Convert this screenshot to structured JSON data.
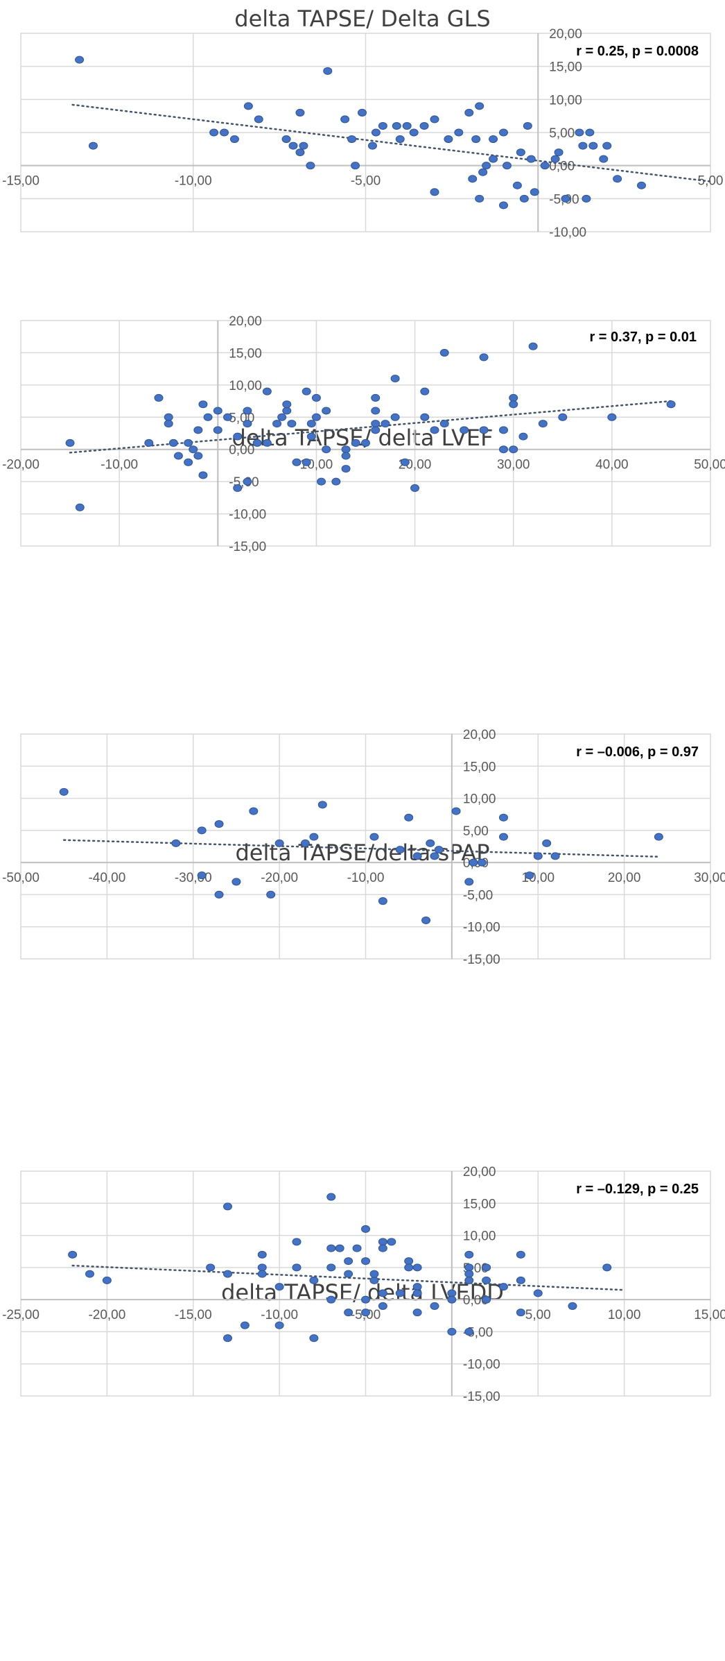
{
  "chart_data": [
    {
      "type": "scatter",
      "title": "delta TAPSE/ Delta GLS",
      "annotation": "r = 0.25, p = 0.0008",
      "xlim": [
        -15,
        5
      ],
      "ylim": [
        -10,
        20
      ],
      "x_ticks": [
        -15,
        -10,
        -5,
        0,
        5
      ],
      "y_ticks": [
        -10,
        -5,
        0,
        5,
        10,
        15,
        20
      ],
      "tick_labels_x": [
        "-15,00",
        "-10,00",
        "-5,00",
        "0,00",
        "5,00"
      ],
      "tick_labels_y": [
        "-10,00",
        "-5,00",
        "0,00",
        "5,00",
        "10,00",
        "15,00",
        "20,00"
      ],
      "grid": true,
      "legend": "none",
      "trendline": [
        [
          -13.5,
          9.2
        ],
        [
          5,
          -2.4
        ]
      ],
      "points": [
        [
          -13.3,
          16
        ],
        [
          -12.9,
          3
        ],
        [
          -9.4,
          5
        ],
        [
          -9.1,
          5
        ],
        [
          -8.4,
          9
        ],
        [
          -8.1,
          7
        ],
        [
          -8.8,
          4
        ],
        [
          -7.3,
          4
        ],
        [
          -7.1,
          3
        ],
        [
          -6.9,
          2
        ],
        [
          -6.8,
          3
        ],
        [
          -6.9,
          8
        ],
        [
          -6.6,
          0
        ],
        [
          -6.1,
          14.3
        ],
        [
          -5.6,
          7
        ],
        [
          -5.4,
          4
        ],
        [
          -5.3,
          0
        ],
        [
          -5.1,
          8
        ],
        [
          -4.8,
          3
        ],
        [
          -4.7,
          5
        ],
        [
          -4.5,
          6
        ],
        [
          -4.1,
          6
        ],
        [
          -4.0,
          4
        ],
        [
          -3.8,
          6
        ],
        [
          -3.6,
          5
        ],
        [
          -3.3,
          6
        ],
        [
          -3.0,
          7
        ],
        [
          -3.0,
          -4
        ],
        [
          -2.6,
          4
        ],
        [
          -2.3,
          5
        ],
        [
          -2.0,
          8
        ],
        [
          -1.7,
          9
        ],
        [
          -1.8,
          4
        ],
        [
          -1.5,
          0
        ],
        [
          -1.6,
          -1
        ],
        [
          -1.3,
          1
        ],
        [
          -1.0,
          5
        ],
        [
          -0.9,
          0
        ],
        [
          -1.9,
          -2
        ],
        [
          -1.3,
          4
        ],
        [
          -0.5,
          2
        ],
        [
          -0.2,
          1
        ],
        [
          0.2,
          0
        ],
        [
          0.5,
          1
        ],
        [
          0.6,
          2
        ],
        [
          -0.3,
          6
        ],
        [
          -1.7,
          -5
        ],
        [
          -1.0,
          -6
        ],
        [
          -0.6,
          -3
        ],
        [
          -0.4,
          -5
        ],
        [
          -0.1,
          -4
        ],
        [
          1.2,
          5
        ],
        [
          1.5,
          5
        ],
        [
          1.3,
          3
        ],
        [
          1.6,
          3
        ],
        [
          1.9,
          1
        ],
        [
          2.0,
          3
        ],
        [
          2.3,
          -2
        ],
        [
          3.0,
          -3
        ],
        [
          1.4,
          -5
        ],
        [
          0.8,
          -5
        ]
      ]
    },
    {
      "type": "scatter",
      "title": "delta TAPSE/ delta LVEF",
      "annotation": "r = 0.37, p = 0.01",
      "xlim": [
        -20,
        50
      ],
      "ylim": [
        -15,
        20
      ],
      "x_ticks": [
        -20,
        -10,
        0,
        10,
        20,
        30,
        40,
        50
      ],
      "y_ticks": [
        -15,
        -10,
        -5,
        0,
        5,
        10,
        15,
        20
      ],
      "tick_labels_x": [
        "-20,00",
        "-10,00",
        "0,00",
        "10,00",
        "20,00",
        "30,00",
        "40,00",
        "50,00"
      ],
      "tick_labels_y": [
        "-15,00",
        "-10,00",
        "-5,00",
        "0,00",
        "5,00",
        "10,00",
        "15,00",
        "20,00"
      ],
      "grid": true,
      "legend": "none",
      "trendline": [
        [
          -15,
          -0.5
        ],
        [
          46,
          7.5
        ]
      ],
      "points": [
        [
          -15,
          1
        ],
        [
          -14,
          -9
        ],
        [
          -7,
          1
        ],
        [
          -6,
          8
        ],
        [
          -5,
          5
        ],
        [
          -5,
          4
        ],
        [
          -4.5,
          1
        ],
        [
          -4,
          -1
        ],
        [
          -3,
          1
        ],
        [
          -3,
          -2
        ],
        [
          -2.5,
          0
        ],
        [
          -2,
          3
        ],
        [
          -2,
          -1
        ],
        [
          -1.5,
          7
        ],
        [
          -1.5,
          -4
        ],
        [
          -1,
          5
        ],
        [
          0,
          3
        ],
        [
          0,
          6
        ],
        [
          1,
          5
        ],
        [
          2,
          2
        ],
        [
          2,
          -6
        ],
        [
          3,
          4
        ],
        [
          3,
          6
        ],
        [
          3,
          -5
        ],
        [
          4,
          1
        ],
        [
          5,
          9
        ],
        [
          5,
          1
        ],
        [
          6,
          4
        ],
        [
          6.5,
          5
        ],
        [
          7,
          6
        ],
        [
          7,
          7
        ],
        [
          7.5,
          4
        ],
        [
          8,
          -2
        ],
        [
          9,
          -2
        ],
        [
          9,
          9
        ],
        [
          9.5,
          4
        ],
        [
          9.5,
          2
        ],
        [
          10,
          8
        ],
        [
          10,
          5
        ],
        [
          10.5,
          -5
        ],
        [
          11,
          6
        ],
        [
          11,
          0
        ],
        [
          12,
          -5
        ],
        [
          13,
          0
        ],
        [
          13,
          -1
        ],
        [
          13,
          -3
        ],
        [
          14,
          1
        ],
        [
          15,
          1
        ],
        [
          16,
          8
        ],
        [
          16,
          6
        ],
        [
          16,
          4
        ],
        [
          16,
          3
        ],
        [
          17,
          4
        ],
        [
          18,
          11
        ],
        [
          18,
          5
        ],
        [
          19,
          -2
        ],
        [
          20,
          -6
        ],
        [
          21,
          9
        ],
        [
          21,
          5
        ],
        [
          22,
          3
        ],
        [
          23,
          15
        ],
        [
          23,
          4
        ],
        [
          25,
          3
        ],
        [
          27,
          14.3
        ],
        [
          27,
          3
        ],
        [
          29,
          3
        ],
        [
          29,
          0
        ],
        [
          30,
          8
        ],
        [
          30,
          7
        ],
        [
          30,
          0
        ],
        [
          31,
          2
        ],
        [
          32,
          16
        ],
        [
          33,
          4
        ],
        [
          35,
          5
        ],
        [
          40,
          5
        ],
        [
          46,
          7
        ]
      ]
    },
    {
      "type": "scatter",
      "title": "delta TAPSE/delta sPAP",
      "annotation": "r = –0.006, p = 0.97",
      "xlim": [
        -50,
        30
      ],
      "ylim": [
        -15,
        20
      ],
      "x_ticks": [
        -50,
        -40,
        -30,
        -20,
        -10,
        0,
        10,
        20,
        30
      ],
      "y_ticks": [
        -15,
        -10,
        -5,
        0,
        5,
        10,
        15,
        20
      ],
      "tick_labels_x": [
        "-50,00",
        "-40,00",
        "-30,00",
        "-20,00",
        "-10,00",
        "0,00",
        "10,00",
        "20,00",
        "30,00"
      ],
      "tick_labels_y": [
        "-15,00",
        "-10,00",
        "-5,00",
        "0,00",
        "5,00",
        "10,00",
        "15,00",
        "20,00"
      ],
      "grid": true,
      "legend": "none",
      "trendline": [
        [
          -45,
          3.5
        ],
        [
          24,
          0.9
        ]
      ],
      "points": [
        [
          -45,
          11
        ],
        [
          -32,
          3
        ],
        [
          -29,
          5
        ],
        [
          -29,
          -2
        ],
        [
          -27,
          6
        ],
        [
          -27,
          -5
        ],
        [
          -25,
          -3
        ],
        [
          -23,
          8
        ],
        [
          -21,
          -5
        ],
        [
          -20,
          3
        ],
        [
          -17,
          3
        ],
        [
          -16,
          4
        ],
        [
          -15,
          9
        ],
        [
          -9,
          4
        ],
        [
          -8,
          -6
        ],
        [
          -6,
          2
        ],
        [
          -5,
          7
        ],
        [
          -4,
          1
        ],
        [
          -3,
          -9
        ],
        [
          -2.5,
          3
        ],
        [
          -2,
          1
        ],
        [
          -1.5,
          2
        ],
        [
          0.5,
          8
        ],
        [
          2,
          -3
        ],
        [
          2.5,
          0
        ],
        [
          3.5,
          0
        ],
        [
          6,
          7
        ],
        [
          6,
          4
        ],
        [
          9,
          -2
        ],
        [
          10,
          1
        ],
        [
          11,
          3
        ],
        [
          12,
          1
        ],
        [
          24,
          4
        ]
      ]
    },
    {
      "type": "scatter",
      "title": "delta TAPSE/ delta LVEDD",
      "annotation": "r = –0.129, p = 0.25",
      "xlim": [
        -25,
        15
      ],
      "ylim": [
        -15,
        20
      ],
      "x_ticks": [
        -25,
        -20,
        -15,
        -10,
        -5,
        0,
        5,
        10,
        15
      ],
      "y_ticks": [
        -15,
        -10,
        -5,
        0,
        5,
        10,
        15,
        20
      ],
      "tick_labels_x": [
        "-25,00",
        "-20,00",
        "-15,00",
        "-10,00",
        "-5,00",
        "0,00",
        "5,00",
        "10,00",
        "15,00"
      ],
      "tick_labels_y": [
        "-15,00",
        "-10,00",
        "-5,00",
        "0,00",
        "5,00",
        "10,00",
        "15,00",
        "20,00"
      ],
      "grid": true,
      "legend": "none",
      "trendline": [
        [
          -22,
          5.3
        ],
        [
          10,
          1.5
        ]
      ],
      "points": [
        [
          -22,
          7
        ],
        [
          -21,
          4
        ],
        [
          -20,
          3
        ],
        [
          -14,
          5
        ],
        [
          -13,
          14.5
        ],
        [
          -13,
          4
        ],
        [
          -13,
          -6
        ],
        [
          -12,
          -4
        ],
        [
          -11,
          7
        ],
        [
          -11,
          5
        ],
        [
          -11,
          4
        ],
        [
          -10,
          2
        ],
        [
          -10,
          -4
        ],
        [
          -9,
          9
        ],
        [
          -9,
          5
        ],
        [
          -8,
          3
        ],
        [
          -8,
          -6
        ],
        [
          -7,
          16
        ],
        [
          -7,
          8
        ],
        [
          -7,
          5
        ],
        [
          -7,
          0
        ],
        [
          -6.5,
          8
        ],
        [
          -6,
          6
        ],
        [
          -6,
          4
        ],
        [
          -6,
          -2
        ],
        [
          -5.5,
          8
        ],
        [
          -5,
          11
        ],
        [
          -5,
          6
        ],
        [
          -5,
          0
        ],
        [
          -5,
          -2
        ],
        [
          -4.5,
          3
        ],
        [
          -4.5,
          4
        ],
        [
          -4,
          9
        ],
        [
          -4,
          8
        ],
        [
          -4,
          1
        ],
        [
          -4,
          -1
        ],
        [
          -3.5,
          9
        ],
        [
          -3,
          1
        ],
        [
          -2.5,
          6
        ],
        [
          -2.5,
          5
        ],
        [
          -2,
          5
        ],
        [
          -2,
          2
        ],
        [
          -2,
          1
        ],
        [
          -2,
          -2
        ],
        [
          -1,
          -1
        ],
        [
          0,
          -5
        ],
        [
          0,
          1
        ],
        [
          0,
          0
        ],
        [
          1,
          7
        ],
        [
          1,
          5
        ],
        [
          1,
          4
        ],
        [
          1,
          3
        ],
        [
          1,
          -5
        ],
        [
          2,
          5
        ],
        [
          2,
          3
        ],
        [
          2,
          0
        ],
        [
          3,
          2
        ],
        [
          4,
          7
        ],
        [
          4,
          3
        ],
        [
          4,
          -2
        ],
        [
          5,
          1
        ],
        [
          7,
          -1
        ],
        [
          9,
          5
        ]
      ]
    }
  ]
}
